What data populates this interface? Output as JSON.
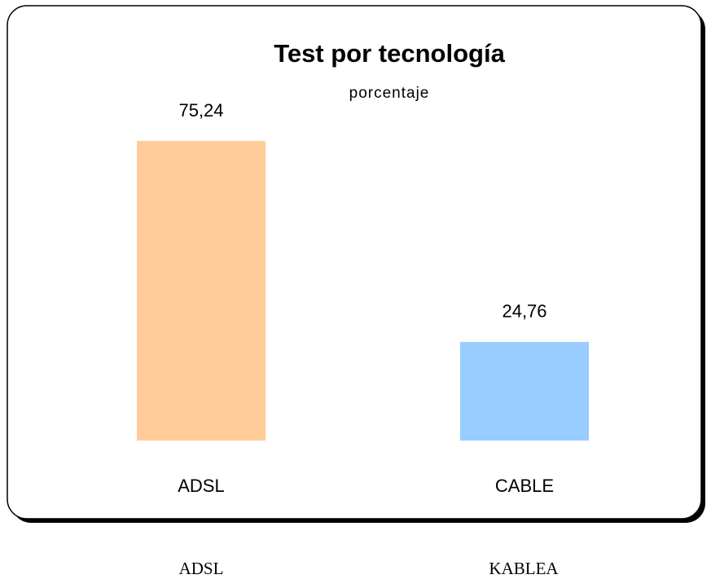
{
  "chart_data": {
    "type": "bar",
    "title": "Test por tecnología",
    "subtitle": "porcentaje",
    "categories": [
      "ADSL",
      "CABLE"
    ],
    "values": [
      75.24,
      24.76
    ],
    "value_labels": [
      "75,24",
      "24,76"
    ],
    "colors": [
      "#ffcc99",
      "#99ccff"
    ],
    "ylim": [
      0,
      100
    ]
  },
  "captions": [
    "ADSL",
    "KABLEA"
  ]
}
